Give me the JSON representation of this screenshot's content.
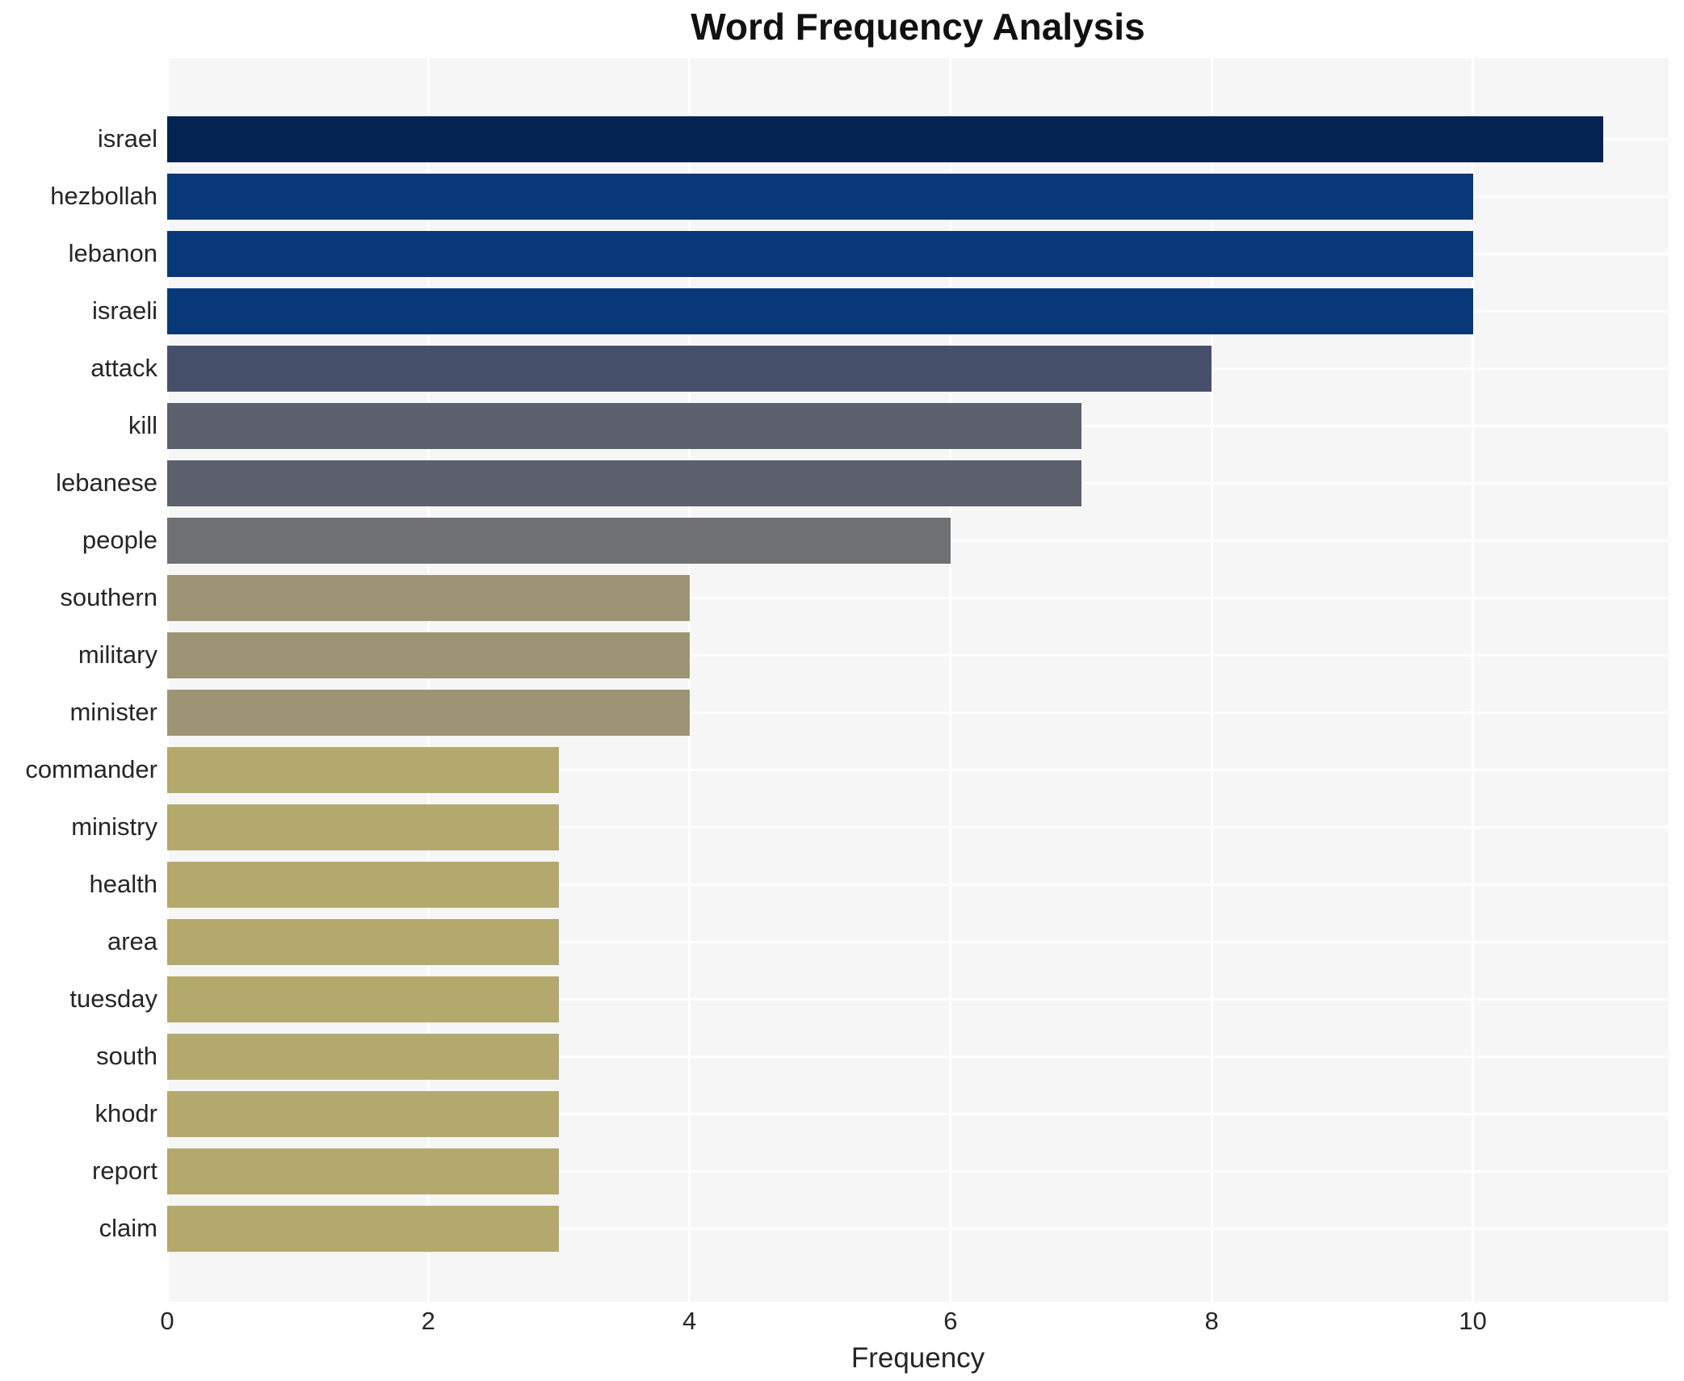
{
  "chart_data": {
    "type": "bar",
    "orientation": "horizontal",
    "title": "Word Frequency Analysis",
    "xlabel": "Frequency",
    "ylabel": "",
    "categories": [
      "israel",
      "hezbollah",
      "lebanon",
      "israeli",
      "attack",
      "kill",
      "lebanese",
      "people",
      "southern",
      "military",
      "minister",
      "commander",
      "ministry",
      "health",
      "area",
      "tuesday",
      "south",
      "khodr",
      "report",
      "claim"
    ],
    "values": [
      11,
      10,
      10,
      10,
      8,
      7,
      7,
      6,
      4,
      4,
      4,
      3,
      3,
      3,
      3,
      3,
      3,
      3,
      3,
      3
    ],
    "bar_colors": [
      "#042350",
      "#083877",
      "#083877",
      "#083877",
      "#47506b",
      "#5d616e",
      "#5d616e",
      "#6f7174",
      "#9c9474",
      "#9c9474",
      "#9c9474",
      "#b3a96d",
      "#b3a96d",
      "#b3a96d",
      "#b3a96d",
      "#b3a96d",
      "#b3a96d",
      "#b3a96d",
      "#b3a96d",
      "#b3a96d"
    ],
    "x_ticks": [
      0,
      2,
      4,
      6,
      8,
      10
    ],
    "xlim": [
      0,
      11.5
    ],
    "grid": true,
    "grid_color": "#ffffff",
    "plot_background": "#f6f6f6",
    "figure_background": "#ffffff",
    "legend": "none",
    "text_color": "#262626",
    "title_color": "#111111"
  }
}
